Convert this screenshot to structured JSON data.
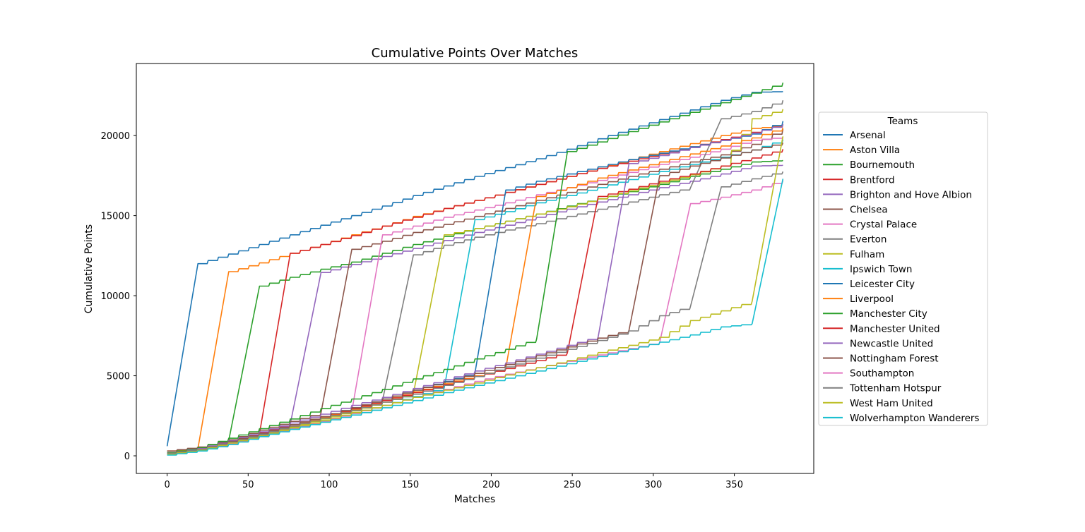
{
  "chart_data": {
    "type": "line",
    "title": "Cumulative Points Over Matches",
    "xlabel": "Matches",
    "ylabel": "Cumulative Points",
    "xlim": [
      -19,
      399
    ],
    "ylim": [
      -1100,
      24500
    ],
    "xticks": [
      0,
      50,
      100,
      150,
      200,
      250,
      300,
      350
    ],
    "yticks": [
      0,
      5000,
      10000,
      15000,
      20000
    ],
    "grid": false,
    "legend": {
      "title": "Teams",
      "placement": "outside-right"
    },
    "series": [
      {
        "name": "Arsenal",
        "color": "#1f77b4",
        "x": [
          0,
          19,
          38,
          57,
          76,
          95,
          114,
          133,
          152,
          171,
          190,
          209,
          228,
          247,
          266,
          285,
          304,
          323,
          342,
          361,
          380
        ],
        "y": [
          600,
          12000,
          12600,
          13200,
          13800,
          14400,
          15000,
          15600,
          16250,
          16850,
          17450,
          18000,
          18550,
          19150,
          19800,
          20400,
          21000,
          21600,
          22200,
          22700,
          22750
        ]
      },
      {
        "name": "Aston Villa",
        "color": "#ff7f0e",
        "x": [
          0,
          19,
          38,
          57,
          76,
          95,
          114,
          133,
          152,
          171,
          190,
          209,
          228,
          247,
          266,
          285,
          304,
          323,
          342,
          361,
          380
        ],
        "y": [
          300,
          450,
          11500,
          12050,
          12650,
          13200,
          13800,
          14350,
          14950,
          15450,
          15950,
          16450,
          16950,
          17450,
          17950,
          18500,
          19000,
          19500,
          20000,
          20450,
          20600
        ]
      },
      {
        "name": "Bournemouth",
        "color": "#2ca02c",
        "x": [
          0,
          19,
          38,
          57,
          76,
          95,
          114,
          133,
          152,
          171,
          190,
          209,
          228,
          247,
          266,
          285,
          304,
          323,
          342,
          361,
          380
        ],
        "y": [
          200,
          450,
          950,
          10600,
          11150,
          11650,
          12100,
          12650,
          13200,
          13700,
          14200,
          14650,
          15100,
          15600,
          16050,
          16500,
          16950,
          17450,
          17900,
          18350,
          18450
        ]
      },
      {
        "name": "Brentford",
        "color": "#d62728",
        "x": [
          0,
          19,
          38,
          57,
          76,
          95,
          114,
          133,
          152,
          171,
          190,
          209,
          228,
          247,
          266,
          285,
          304,
          323,
          342,
          361,
          380
        ],
        "y": [
          150,
          400,
          900,
          1400,
          12650,
          13200,
          13750,
          14350,
          14900,
          15450,
          15950,
          16450,
          16950,
          17450,
          17950,
          18400,
          18850,
          19300,
          19750,
          20200,
          20700
        ]
      },
      {
        "name": "Brighton and Hove Albion",
        "color": "#9467bd",
        "x": [
          0,
          19,
          38,
          57,
          76,
          95,
          114,
          133,
          152,
          171,
          190,
          209,
          228,
          247,
          266,
          285,
          304,
          323,
          342,
          361,
          380
        ],
        "y": [
          200,
          450,
          900,
          1450,
          2000,
          11450,
          11950,
          12450,
          12950,
          13450,
          13950,
          14400,
          14900,
          15400,
          15850,
          16300,
          16750,
          17150,
          17600,
          18100,
          18150
        ]
      },
      {
        "name": "Chelsea",
        "color": "#8c564b",
        "x": [
          0,
          19,
          38,
          57,
          76,
          95,
          114,
          133,
          152,
          171,
          190,
          209,
          228,
          247,
          266,
          285,
          304,
          323,
          342,
          361,
          380
        ],
        "y": [
          300,
          550,
          1000,
          1600,
          2150,
          2700,
          12900,
          13400,
          13950,
          14450,
          14950,
          15450,
          15950,
          16450,
          16950,
          17450,
          17900,
          18350,
          18800,
          19450,
          20400
        ]
      },
      {
        "name": "Crystal Palace",
        "color": "#e377c2",
        "x": [
          0,
          19,
          38,
          57,
          76,
          95,
          114,
          133,
          152,
          171,
          190,
          209,
          228,
          247,
          266,
          285,
          304,
          323,
          342,
          361,
          380
        ],
        "y": [
          150,
          400,
          850,
          1350,
          1800,
          2350,
          2800,
          13800,
          14350,
          14900,
          15350,
          15800,
          16300,
          16750,
          17200,
          17700,
          18200,
          18650,
          19150,
          19700,
          19900
        ]
      },
      {
        "name": "Everton",
        "color": "#7f7f7f",
        "x": [
          0,
          19,
          38,
          57,
          76,
          95,
          114,
          133,
          152,
          171,
          190,
          209,
          228,
          247,
          266,
          285,
          304,
          323,
          342,
          361,
          380
        ],
        "y": [
          100,
          350,
          800,
          1300,
          1850,
          2400,
          2900,
          3500,
          12550,
          13150,
          13650,
          14100,
          14500,
          14950,
          15400,
          15850,
          16300,
          16750,
          21050,
          21500,
          22200
        ]
      },
      {
        "name": "Fulham",
        "color": "#bcbd22",
        "x": [
          0,
          19,
          38,
          57,
          76,
          95,
          114,
          133,
          152,
          171,
          190,
          209,
          228,
          247,
          266,
          285,
          304,
          323,
          342,
          361,
          380
        ],
        "y": [
          150,
          400,
          850,
          1350,
          1800,
          2300,
          2800,
          3350,
          3900,
          13800,
          14200,
          14650,
          15100,
          15550,
          16050,
          16550,
          17050,
          17550,
          18100,
          21050,
          21650
        ]
      },
      {
        "name": "Ipswich Town",
        "color": "#17becf",
        "x": [
          0,
          19,
          38,
          57,
          76,
          95,
          114,
          133,
          152,
          171,
          190,
          209,
          228,
          247,
          266,
          285,
          304,
          323,
          342,
          361,
          380
        ],
        "y": [
          100,
          350,
          750,
          1250,
          1700,
          2200,
          2650,
          3150,
          3700,
          4250,
          14750,
          15250,
          15800,
          16250,
          16750,
          17250,
          17750,
          18200,
          18650,
          19100,
          19750
        ]
      },
      {
        "name": "Leicester City",
        "color": "#1f77b4",
        "x": [
          0,
          19,
          38,
          57,
          76,
          95,
          114,
          133,
          152,
          171,
          190,
          209,
          228,
          247,
          266,
          285,
          304,
          323,
          342,
          361,
          380
        ],
        "y": [
          100,
          400,
          850,
          1400,
          1950,
          2450,
          3000,
          3550,
          4100,
          4650,
          5200,
          16600,
          17150,
          17600,
          18050,
          18500,
          18900,
          19300,
          19700,
          20100,
          20900
        ]
      },
      {
        "name": "Liverpool",
        "color": "#ff7f0e",
        "x": [
          0,
          19,
          38,
          57,
          76,
          95,
          114,
          133,
          152,
          171,
          190,
          209,
          228,
          247,
          266,
          285,
          304,
          323,
          342,
          361,
          380
        ],
        "y": [
          150,
          400,
          850,
          1350,
          1850,
          2400,
          2900,
          3450,
          4000,
          4500,
          5000,
          5500,
          16200,
          16750,
          17350,
          17850,
          18350,
          18850,
          19350,
          19850,
          20500
        ]
      },
      {
        "name": "Manchester City",
        "color": "#2ca02c",
        "x": [
          0,
          19,
          38,
          57,
          76,
          95,
          114,
          133,
          152,
          171,
          190,
          209,
          228,
          247,
          266,
          285,
          304,
          323,
          342,
          361,
          380
        ],
        "y": [
          200,
          500,
          1100,
          1700,
          2300,
          2950,
          3550,
          4150,
          4800,
          5400,
          6050,
          6650,
          7300,
          19000,
          19600,
          20250,
          20850,
          21450,
          22050,
          22650,
          23300
        ]
      },
      {
        "name": "Manchester United",
        "color": "#d62728",
        "x": [
          0,
          19,
          38,
          57,
          76,
          95,
          114,
          133,
          152,
          171,
          190,
          209,
          228,
          247,
          266,
          285,
          304,
          323,
          342,
          361,
          380
        ],
        "y": [
          150,
          400,
          900,
          1450,
          1950,
          2450,
          2950,
          3450,
          3950,
          4450,
          4950,
          5450,
          5950,
          6450,
          16200,
          16650,
          17150,
          17600,
          18100,
          18600,
          19150
        ]
      },
      {
        "name": "Newcastle United",
        "color": "#9467bd",
        "x": [
          0,
          19,
          38,
          57,
          76,
          95,
          114,
          133,
          152,
          171,
          190,
          209,
          228,
          247,
          266,
          285,
          304,
          323,
          342,
          361,
          380
        ],
        "y": [
          150,
          450,
          950,
          1500,
          2050,
          2600,
          3150,
          3650,
          4200,
          4750,
          5300,
          5800,
          6350,
          6900,
          7450,
          18250,
          18750,
          19250,
          19700,
          20150,
          20700
        ]
      },
      {
        "name": "Nottingham Forest",
        "color": "#8c564b",
        "x": [
          0,
          19,
          38,
          57,
          76,
          95,
          114,
          133,
          152,
          171,
          190,
          209,
          228,
          247,
          266,
          285,
          304,
          323,
          342,
          361,
          380
        ],
        "y": [
          150,
          400,
          900,
          1400,
          1950,
          2450,
          3000,
          3550,
          4100,
          4600,
          5150,
          5700,
          6250,
          6800,
          7350,
          7850,
          17500,
          18100,
          18600,
          19100,
          19550
        ]
      },
      {
        "name": "Southampton",
        "color": "#e377c2",
        "x": [
          0,
          19,
          38,
          57,
          76,
          95,
          114,
          133,
          152,
          171,
          190,
          209,
          228,
          247,
          266,
          285,
          304,
          323,
          342,
          361,
          380
        ],
        "y": [
          100,
          350,
          750,
          1200,
          1700,
          2150,
          2650,
          3150,
          3650,
          4150,
          4650,
          5100,
          5500,
          5900,
          6300,
          6700,
          7100,
          15750,
          16150,
          16600,
          17200
        ]
      },
      {
        "name": "Tottenham Hotspur",
        "color": "#7f7f7f",
        "x": [
          0,
          19,
          38,
          57,
          76,
          95,
          114,
          133,
          152,
          171,
          190,
          209,
          228,
          247,
          266,
          285,
          304,
          323,
          342,
          361,
          380
        ],
        "y": [
          150,
          400,
          850,
          1350,
          1850,
          2350,
          2850,
          3350,
          3850,
          4400,
          4950,
          5550,
          6100,
          6650,
          7200,
          7800,
          8750,
          9350,
          16800,
          17300,
          17750
        ]
      },
      {
        "name": "West Ham United",
        "color": "#bcbd22",
        "x": [
          0,
          19,
          38,
          57,
          76,
          95,
          114,
          133,
          152,
          171,
          190,
          209,
          228,
          247,
          266,
          285,
          304,
          323,
          342,
          361,
          380
        ],
        "y": [
          100,
          350,
          800,
          1250,
          1750,
          2200,
          2700,
          3150,
          3650,
          4100,
          4550,
          5050,
          5500,
          5950,
          6450,
          6900,
          7400,
          8450,
          9050,
          9650,
          19950
        ]
      },
      {
        "name": "Wolverhampton Wanderers",
        "color": "#17becf",
        "x": [
          0,
          19,
          38,
          57,
          76,
          95,
          114,
          133,
          152,
          171,
          190,
          209,
          228,
          247,
          266,
          285,
          304,
          323,
          342,
          361,
          380
        ],
        "y": [
          50,
          300,
          700,
          1200,
          1650,
          2100,
          2550,
          3000,
          3450,
          3950,
          4400,
          4850,
          5300,
          5750,
          6200,
          6650,
          7100,
          7550,
          8050,
          8250,
          17300
        ]
      }
    ]
  }
}
